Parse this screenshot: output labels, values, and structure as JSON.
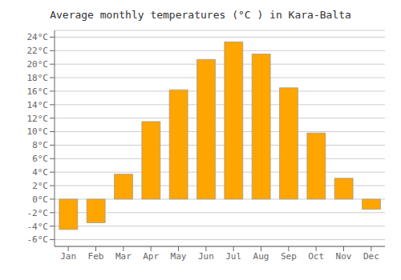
{
  "chart_data": {
    "type": "bar",
    "title": "Average monthly temperatures (°C ) in Kara-Balta",
    "categories": [
      "Jan",
      "Feb",
      "Mar",
      "Apr",
      "May",
      "Jun",
      "Jul",
      "Aug",
      "Sep",
      "Oct",
      "Nov",
      "Dec"
    ],
    "values": [
      -4.5,
      -3.5,
      3.7,
      11.5,
      16.2,
      20.7,
      23.3,
      21.5,
      16.5,
      9.8,
      3.1,
      -1.5
    ],
    "color": "#FFA500",
    "ylim": [
      -7,
      25
    ],
    "yticks": [
      {
        "value": -6,
        "label": "-6°C"
      },
      {
        "value": -4,
        "label": "-4°C"
      },
      {
        "value": -2,
        "label": "-2°C"
      },
      {
        "value": 0,
        "label": "0°C"
      },
      {
        "value": 2,
        "label": "2°C"
      },
      {
        "value": 4,
        "label": "4°C"
      },
      {
        "value": 6,
        "label": "6°C"
      },
      {
        "value": 8,
        "label": "8°C"
      },
      {
        "value": 10,
        "label": "10°C"
      },
      {
        "value": 12,
        "label": "12°C"
      },
      {
        "value": 14,
        "label": "14°C"
      },
      {
        "value": 16,
        "label": "16°C"
      },
      {
        "value": 18,
        "label": "18°C"
      },
      {
        "value": 20,
        "label": "20°C"
      },
      {
        "value": 22,
        "label": "22°C"
      },
      {
        "value": 24,
        "label": "24°C"
      }
    ],
    "grid": true
  }
}
